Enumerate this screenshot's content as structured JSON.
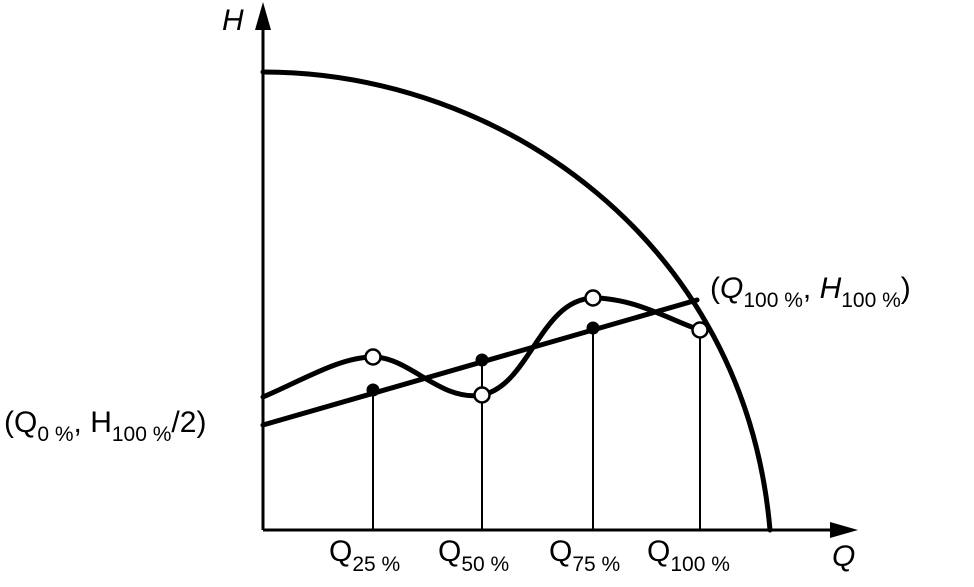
{
  "axes": {
    "x_label": "Q",
    "y_label": "H"
  },
  "annotations": {
    "end_point": {
      "open": "(",
      "q": "Q",
      "q_sub": "100 %",
      "sep": ", ",
      "h": "H",
      "h_sub": "100 %",
      "close": ")"
    },
    "start_point": {
      "open": "(",
      "q": "Q",
      "q_sub": "0 %",
      "sep": ", ",
      "h": "H",
      "h_sub": "100 %",
      "close": "/2)"
    }
  },
  "x_ticks": [
    {
      "base": "Q",
      "sub": "25 %"
    },
    {
      "base": "Q",
      "sub": "50 %"
    },
    {
      "base": "Q",
      "sub": "75 %"
    },
    {
      "base": "Q",
      "sub": "100 %"
    }
  ],
  "colors": {
    "ink": "#000000",
    "background": "#ffffff"
  }
}
